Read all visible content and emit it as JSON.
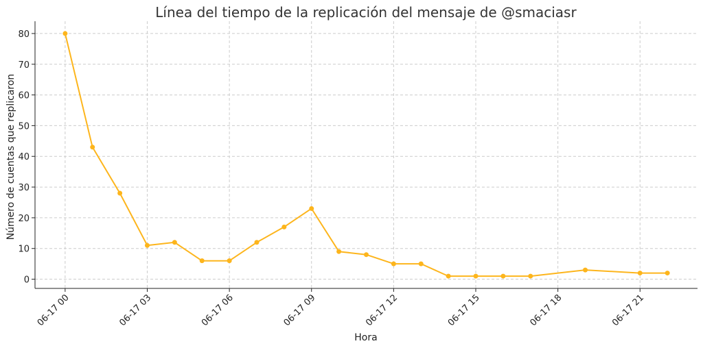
{
  "chart_data": {
    "type": "line",
    "title": "Línea del tiempo de la replicación del mensaje de @smaciasr",
    "xlabel": "Hora",
    "ylabel": "Número de cuentas que replicaron",
    "xlim": [
      -1.1,
      23.1
    ],
    "ylim": [
      -3,
      84
    ],
    "x_ticks": [
      {
        "value": 0,
        "label": "06-17 00"
      },
      {
        "value": 3,
        "label": "06-17 03"
      },
      {
        "value": 6,
        "label": "06-17 06"
      },
      {
        "value": 9,
        "label": "06-17 09"
      },
      {
        "value": 12,
        "label": "06-17 12"
      },
      {
        "value": 15,
        "label": "06-17 15"
      },
      {
        "value": 18,
        "label": "06-17 18"
      },
      {
        "value": 21,
        "label": "06-17 21"
      }
    ],
    "y_ticks": [
      0,
      10,
      20,
      30,
      40,
      50,
      60,
      70,
      80
    ],
    "grid": true,
    "series": [
      {
        "color": "#FDB51C",
        "x": [
          0,
          1,
          2,
          3,
          4,
          5,
          6,
          7,
          8,
          9,
          10,
          11,
          12,
          13,
          14,
          15,
          16,
          17,
          19,
          21,
          22
        ],
        "y": [
          80,
          43,
          28,
          11,
          12,
          6,
          6,
          12,
          17,
          23,
          9,
          8,
          5,
          5,
          1,
          1,
          1,
          1,
          3,
          2,
          2
        ]
      }
    ]
  }
}
